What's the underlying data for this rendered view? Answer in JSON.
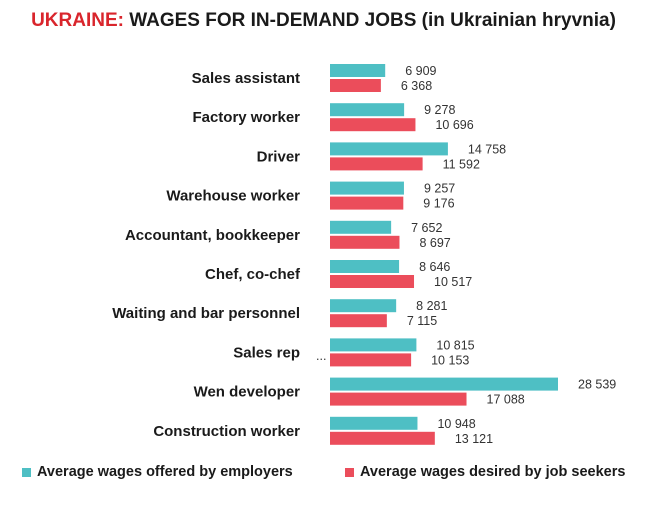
{
  "title": {
    "prefix": "UKRAINE:",
    "main": "WAGES FOR IN-DEMAND JOBS (in Ukrainian hryvnia)"
  },
  "colors": {
    "offered": "#4ebfc4",
    "desired": "#eb4d5b",
    "title_accent": "#d9252c"
  },
  "chart_data": {
    "type": "bar",
    "orientation": "horizontal",
    "categories": [
      "Sales assistant",
      "Factory worker",
      "Driver",
      "Warehouse worker",
      "Accountant, bookkeeper",
      "Chef, co-chef",
      "Waiting and bar personnel",
      "Sales rep",
      "Wen developer",
      "Construction worker"
    ],
    "series": [
      {
        "name": "Average wages offered by employers",
        "values": [
          6909,
          9278,
          14758,
          9257,
          7652,
          8646,
          8281,
          10815,
          28539,
          10948
        ],
        "labels": [
          "6 909",
          "9 278",
          "14 758",
          "9 257",
          "7 652",
          "8 646",
          "8 281",
          "10 815",
          "28 539",
          "10 948"
        ]
      },
      {
        "name": "Average wages desired by job seekers",
        "values": [
          6368,
          10696,
          11592,
          9176,
          8697,
          10517,
          7115,
          10153,
          17088,
          13121
        ],
        "labels": [
          "6 368",
          "10 696",
          "11 592",
          "9 176",
          "8 697",
          "10 517",
          "7 115",
          "10 153",
          "17 088",
          "13 121"
        ]
      }
    ],
    "annotations": [
      "..."
    ],
    "legend_position": "bottom",
    "grid": false
  }
}
